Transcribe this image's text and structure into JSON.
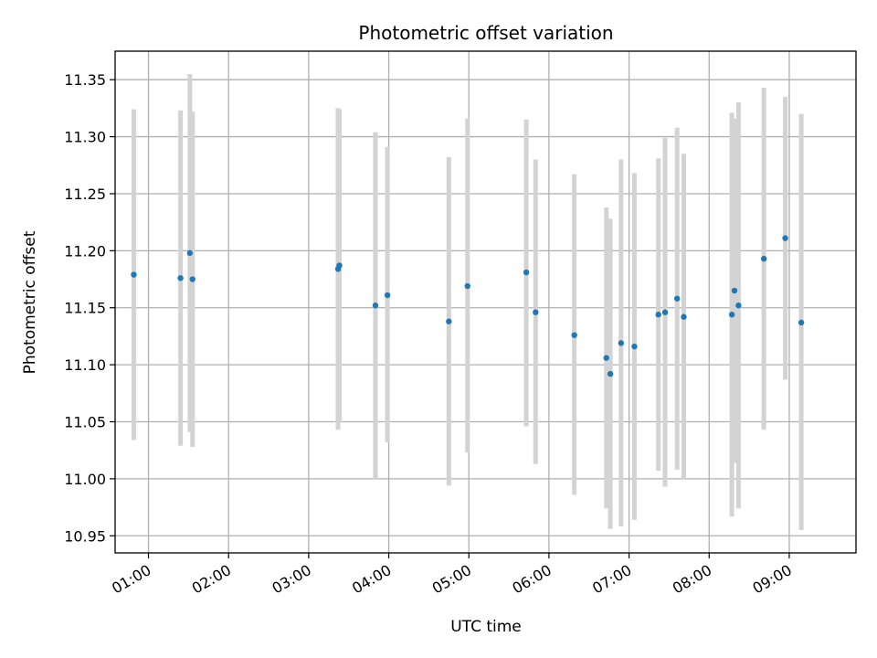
{
  "chart_data": {
    "type": "scatter",
    "title": "Photometric offset variation",
    "xlabel": "UTC time",
    "ylabel": "Photometric offset",
    "x_ticks": [
      "01:00",
      "02:00",
      "03:00",
      "04:00",
      "05:00",
      "06:00",
      "07:00",
      "08:00",
      "09:00"
    ],
    "y_ticks": [
      "10.95",
      "11.00",
      "11.05",
      "11.10",
      "11.15",
      "11.20",
      "11.25",
      "11.30",
      "11.35"
    ],
    "xlim": [
      "00:35",
      "09:50"
    ],
    "ylim": [
      10.935,
      11.375
    ],
    "grid": true,
    "colors": {
      "points": "#1f77b4",
      "errorbars": "#d3d3d3",
      "grid": "#b0b0b0",
      "axes": "#000000"
    },
    "points": [
      {
        "time": "00:49",
        "y": 11.179,
        "ylow": 11.034,
        "yhigh": 11.324
      },
      {
        "time": "01:24",
        "y": 11.176,
        "ylow": 11.029,
        "yhigh": 11.323
      },
      {
        "time": "01:31",
        "y": 11.198,
        "ylow": 11.041,
        "yhigh": 11.355
      },
      {
        "time": "01:33",
        "y": 11.175,
        "ylow": 11.028,
        "yhigh": 11.322
      },
      {
        "time": "03:22",
        "y": 11.184,
        "ylow": 11.043,
        "yhigh": 11.325
      },
      {
        "time": "03:23",
        "y": 11.187,
        "ylow": 11.05,
        "yhigh": 11.324
      },
      {
        "time": "03:50",
        "y": 11.152,
        "ylow": 11.0,
        "yhigh": 11.304
      },
      {
        "time": "03:59",
        "y": 11.161,
        "ylow": 11.032,
        "yhigh": 11.291
      },
      {
        "time": "04:45",
        "y": 11.138,
        "ylow": 10.994,
        "yhigh": 11.282
      },
      {
        "time": "04:59",
        "y": 11.169,
        "ylow": 11.023,
        "yhigh": 11.316
      },
      {
        "time": "05:43",
        "y": 11.181,
        "ylow": 11.046,
        "yhigh": 11.315
      },
      {
        "time": "05:50",
        "y": 11.146,
        "ylow": 11.013,
        "yhigh": 11.28
      },
      {
        "time": "06:19",
        "y": 11.126,
        "ylow": 10.986,
        "yhigh": 11.267
      },
      {
        "time": "06:43",
        "y": 11.106,
        "ylow": 10.974,
        "yhigh": 11.238
      },
      {
        "time": "06:46",
        "y": 11.092,
        "ylow": 10.956,
        "yhigh": 11.228
      },
      {
        "time": "06:54",
        "y": 11.119,
        "ylow": 10.958,
        "yhigh": 11.28
      },
      {
        "time": "07:04",
        "y": 11.116,
        "ylow": 10.964,
        "yhigh": 11.268
      },
      {
        "time": "07:22",
        "y": 11.144,
        "ylow": 11.007,
        "yhigh": 11.281
      },
      {
        "time": "07:27",
        "y": 11.146,
        "ylow": 10.993,
        "yhigh": 11.299
      },
      {
        "time": "07:36",
        "y": 11.158,
        "ylow": 11.008,
        "yhigh": 11.308
      },
      {
        "time": "07:41",
        "y": 11.142,
        "ylow": 10.999,
        "yhigh": 11.285
      },
      {
        "time": "08:17",
        "y": 11.144,
        "ylow": 10.967,
        "yhigh": 11.321
      },
      {
        "time": "08:19",
        "y": 11.165,
        "ylow": 11.014,
        "yhigh": 11.316
      },
      {
        "time": "08:22",
        "y": 11.152,
        "ylow": 10.974,
        "yhigh": 11.33
      },
      {
        "time": "08:41",
        "y": 11.193,
        "ylow": 11.043,
        "yhigh": 11.343
      },
      {
        "time": "08:57",
        "y": 11.211,
        "ylow": 11.087,
        "yhigh": 11.335
      },
      {
        "time": "09:09",
        "y": 11.137,
        "ylow": 10.955,
        "yhigh": 11.32
      }
    ]
  }
}
